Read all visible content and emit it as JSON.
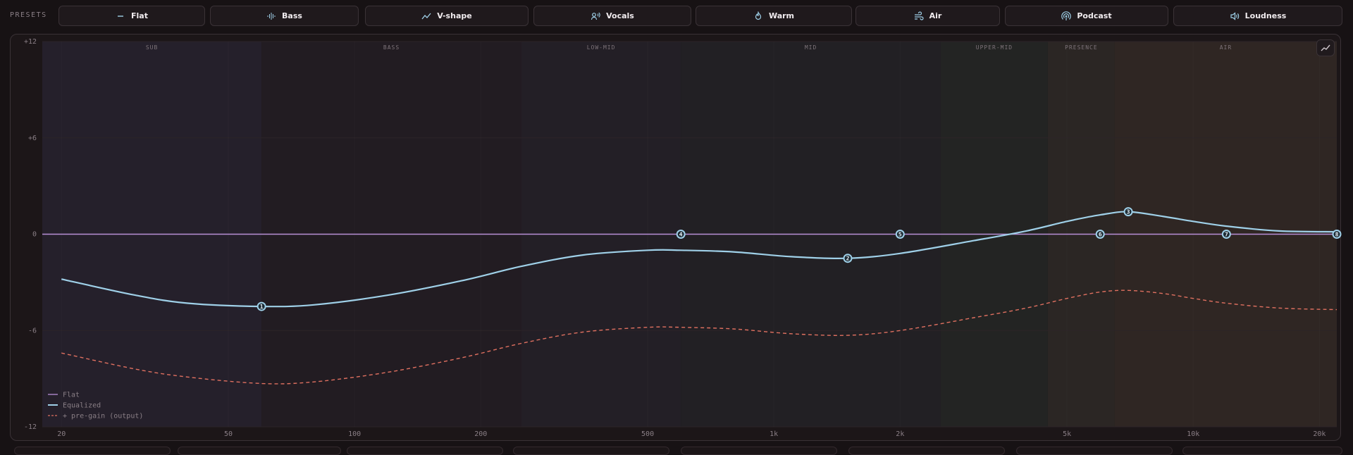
{
  "presets": {
    "label": "PRESETS",
    "items": [
      {
        "label": "Flat",
        "icon": "minus-icon"
      },
      {
        "label": "Bass",
        "icon": "waveform-icon"
      },
      {
        "label": "V-shape",
        "icon": "trend-line-icon"
      },
      {
        "label": "Vocals",
        "icon": "person-voice-icon"
      },
      {
        "label": "Warm",
        "icon": "flame-icon"
      },
      {
        "label": "Air",
        "icon": "wind-icon"
      },
      {
        "label": "Podcast",
        "icon": "broadcast-icon"
      },
      {
        "label": "Loudness",
        "icon": "speaker-icon"
      }
    ]
  },
  "colors": {
    "flat": "#b88fd6",
    "equalized": "#9fd0e8",
    "pregain": "#e07060",
    "accent": "#9fd0e8"
  },
  "chart_data": {
    "type": "line",
    "x_scale": "log",
    "xlim": [
      18,
      22000
    ],
    "ylim": [
      -12,
      12
    ],
    "y_ticks": [
      {
        "value": 12,
        "label": "+12"
      },
      {
        "value": 6,
        "label": "+6"
      },
      {
        "value": 0,
        "label": "0"
      },
      {
        "value": -6,
        "label": "-6"
      },
      {
        "value": -12,
        "label": "-12"
      }
    ],
    "x_ticks": [
      {
        "value": 20,
        "label": "20"
      },
      {
        "value": 50,
        "label": "50"
      },
      {
        "value": 100,
        "label": "100"
      },
      {
        "value": 200,
        "label": "200"
      },
      {
        "value": 500,
        "label": "500"
      },
      {
        "value": 1000,
        "label": "1k"
      },
      {
        "value": 2000,
        "label": "2k"
      },
      {
        "value": 5000,
        "label": "5k"
      },
      {
        "value": 10000,
        "label": "10k"
      },
      {
        "value": 20000,
        "label": "20k"
      }
    ],
    "bands": [
      {
        "label": "SUB",
        "from": 18,
        "to": 60,
        "color": "#25202b"
      },
      {
        "label": "BASS",
        "from": 60,
        "to": 250,
        "color": "#221c22"
      },
      {
        "label": "LOW-MID",
        "from": 250,
        "to": 600,
        "color": "#231f26"
      },
      {
        "label": "MID",
        "from": 600,
        "to": 2500,
        "color": "#222024"
      },
      {
        "label": "UPPER-MID",
        "from": 2500,
        "to": 4500,
        "color": "#232423"
      },
      {
        "label": "PRESENCE",
        "from": 4500,
        "to": 6500,
        "color": "#2b2624"
      },
      {
        "label": "AIR",
        "from": 6500,
        "to": 22000,
        "color": "#2f2623"
      }
    ],
    "series": [
      {
        "name": "Flat",
        "style": "solid",
        "points": [
          [
            18,
            0
          ],
          [
            22000,
            0
          ]
        ]
      },
      {
        "name": "Equalized",
        "style": "solid",
        "points": [
          [
            20,
            -2.8
          ],
          [
            30,
            -3.8
          ],
          [
            40,
            -4.3
          ],
          [
            60,
            -4.5
          ],
          [
            80,
            -4.4
          ],
          [
            120,
            -3.8
          ],
          [
            180,
            -2.9
          ],
          [
            250,
            -2.0
          ],
          [
            350,
            -1.3
          ],
          [
            500,
            -1.0
          ],
          [
            600,
            -1.0
          ],
          [
            800,
            -1.1
          ],
          [
            1100,
            -1.4
          ],
          [
            1500,
            -1.5
          ],
          [
            2000,
            -1.2
          ],
          [
            3000,
            -0.4
          ],
          [
            4000,
            0.2
          ],
          [
            5000,
            0.8
          ],
          [
            6000,
            1.2
          ],
          [
            7000,
            1.4
          ],
          [
            8500,
            1.1
          ],
          [
            10000,
            0.8
          ],
          [
            12000,
            0.5
          ],
          [
            16000,
            0.2
          ],
          [
            22000,
            0.15
          ]
        ]
      },
      {
        "name": "+ pre-gain (output)",
        "style": "dashed",
        "points": [
          [
            20,
            -7.4
          ],
          [
            30,
            -8.4
          ],
          [
            40,
            -8.9
          ],
          [
            60,
            -9.3
          ],
          [
            80,
            -9.2
          ],
          [
            120,
            -8.6
          ],
          [
            180,
            -7.7
          ],
          [
            250,
            -6.8
          ],
          [
            350,
            -6.1
          ],
          [
            500,
            -5.8
          ],
          [
            600,
            -5.8
          ],
          [
            800,
            -5.9
          ],
          [
            1100,
            -6.2
          ],
          [
            1500,
            -6.3
          ],
          [
            2000,
            -6.0
          ],
          [
            3000,
            -5.2
          ],
          [
            4000,
            -4.6
          ],
          [
            5000,
            -4.0
          ],
          [
            6000,
            -3.6
          ],
          [
            7000,
            -3.5
          ],
          [
            8500,
            -3.7
          ],
          [
            10000,
            -4.0
          ],
          [
            12000,
            -4.3
          ],
          [
            16000,
            -4.6
          ],
          [
            22000,
            -4.7
          ]
        ]
      }
    ],
    "nodes": [
      {
        "label": "1",
        "x": 60,
        "y": -4.5
      },
      {
        "label": "2",
        "x": 1500,
        "y": -1.5
      },
      {
        "label": "3",
        "x": 7000,
        "y": 1.4
      },
      {
        "label": "4",
        "x": 600,
        "y": 0
      },
      {
        "label": "5",
        "x": 2000,
        "y": 0
      },
      {
        "label": "6",
        "x": 6000,
        "y": 0
      },
      {
        "label": "7",
        "x": 12000,
        "y": 0
      },
      {
        "label": "8",
        "x": 22000,
        "y": 0
      }
    ]
  }
}
